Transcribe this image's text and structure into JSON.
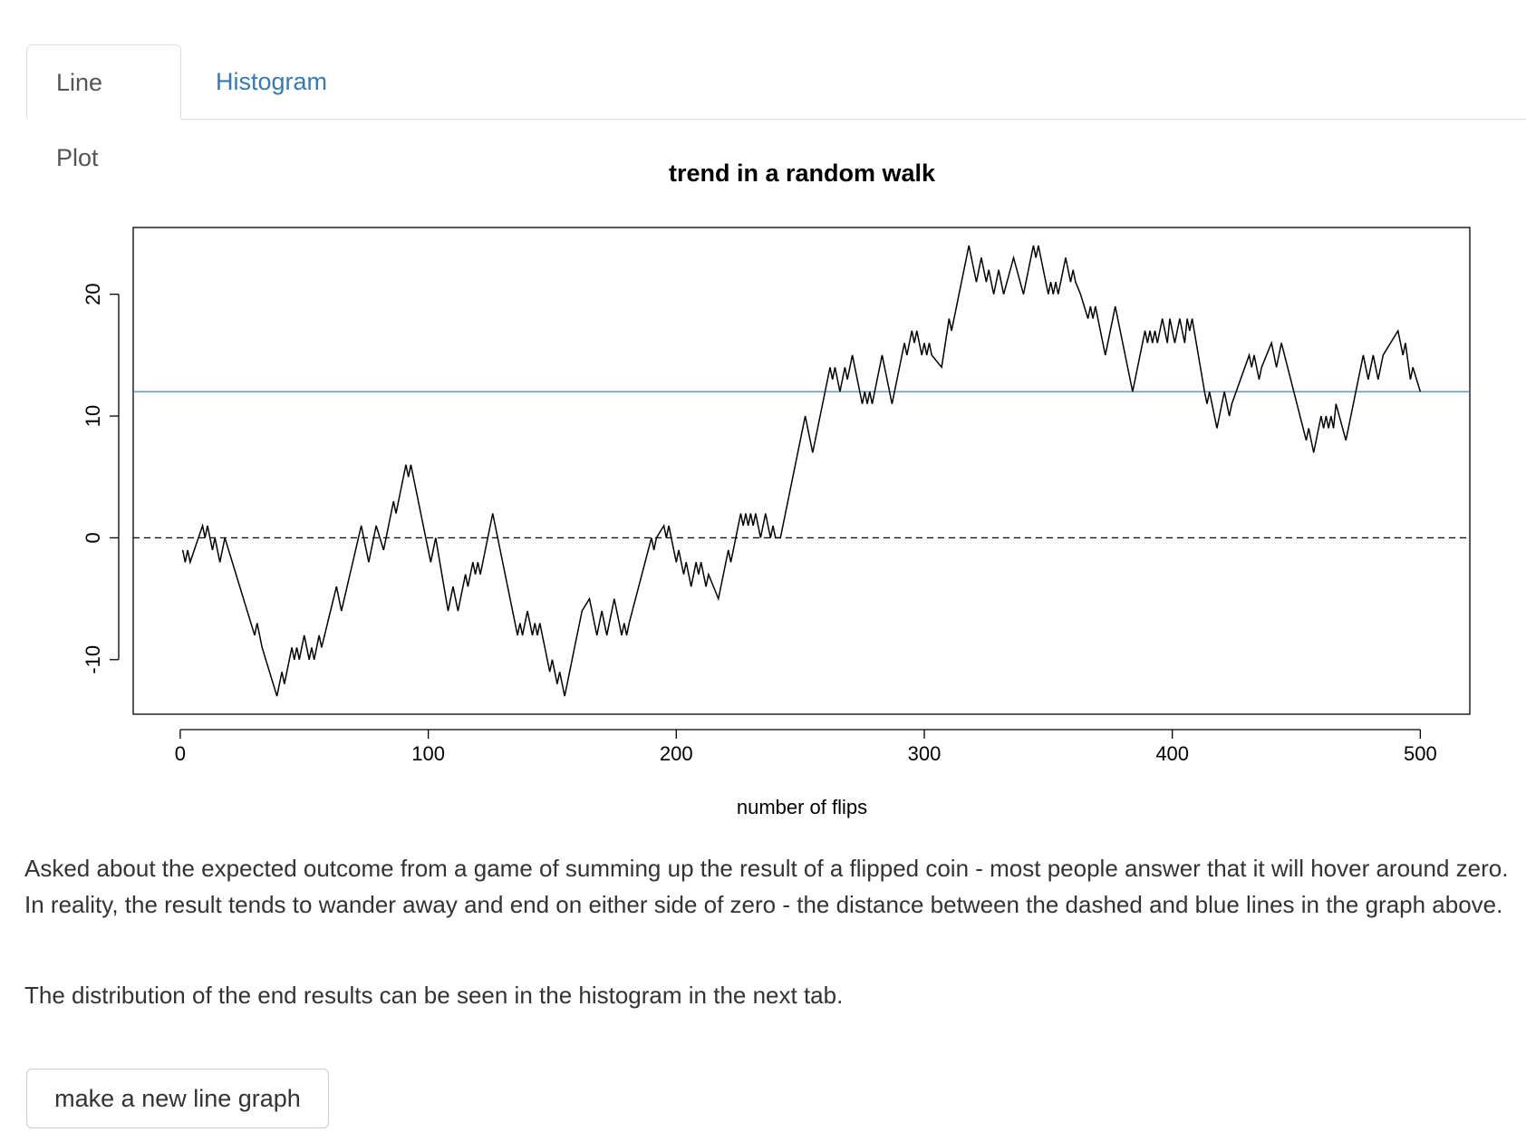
{
  "tabs": [
    "Line Plot",
    "Histogram"
  ],
  "chart_data": {
    "type": "line",
    "title": "trend in a random walk",
    "x_label": "number of flips",
    "x": [
      1,
      2,
      3,
      4,
      9,
      10,
      11,
      13,
      14,
      16,
      18,
      30,
      31,
      33,
      39,
      41,
      42,
      45,
      46,
      47,
      48,
      50,
      52,
      53,
      54,
      56,
      57,
      63,
      65,
      73,
      76,
      79,
      82,
      86,
      87,
      91,
      92,
      93,
      101,
      103,
      108,
      110,
      112,
      115,
      116,
      118,
      119,
      120,
      121,
      126,
      136,
      137,
      138,
      140,
      142,
      143,
      144,
      145,
      149,
      150,
      152,
      153,
      155,
      161,
      162,
      165,
      168,
      170,
      172,
      175,
      177,
      178,
      179,
      180,
      181,
      190,
      191,
      192,
      195,
      196,
      197,
      200,
      201,
      203,
      204,
      206,
      208,
      209,
      210,
      212,
      213,
      217,
      221,
      222,
      223,
      224,
      226,
      227,
      228,
      229,
      230,
      231,
      232,
      234,
      236,
      237,
      238,
      239,
      240,
      242,
      252,
      255,
      262,
      263,
      264,
      266,
      268,
      269,
      271,
      275,
      276,
      277,
      278,
      279,
      283,
      287,
      292,
      293,
      294,
      295,
      296,
      297,
      298,
      299,
      300,
      301,
      302,
      303,
      307,
      310,
      311,
      318,
      321,
      323,
      324,
      325,
      326,
      328,
      329,
      330,
      331,
      332,
      336,
      340,
      344,
      345,
      346,
      348,
      350,
      351,
      352,
      353,
      354,
      357,
      358,
      359,
      360,
      361,
      363,
      366,
      367,
      368,
      369,
      373,
      377,
      384,
      389,
      390,
      391,
      392,
      393,
      394,
      396,
      397,
      398,
      399,
      400,
      401,
      403,
      404,
      405,
      406,
      407,
      408,
      413,
      414,
      415,
      416,
      418,
      421,
      422,
      423,
      424,
      431,
      432,
      433,
      434,
      435,
      436,
      440,
      441,
      442,
      443,
      444,
      454,
      455,
      457,
      460,
      461,
      462,
      463,
      464,
      465,
      466,
      470,
      477,
      478,
      479,
      480,
      481,
      482,
      483,
      484,
      485,
      491,
      492,
      493,
      494,
      496,
      497,
      500
    ],
    "y": [
      -1,
      -2,
      -1,
      -2,
      1,
      0,
      1,
      -1,
      0,
      -2,
      0,
      -8,
      -7,
      -9,
      -13,
      -11,
      -12,
      -9,
      -10,
      -9,
      -10,
      -8,
      -10,
      -9,
      -10,
      -8,
      -9,
      -4,
      -6,
      1,
      -2,
      1,
      -1,
      3,
      2,
      6,
      5,
      6,
      -2,
      0,
      -6,
      -4,
      -6,
      -3,
      -4,
      -2,
      -3,
      -2,
      -3,
      2,
      -8,
      -7,
      -8,
      -6,
      -8,
      -7,
      -8,
      -7,
      -11,
      -10,
      -12,
      -11,
      -13,
      -7,
      -6,
      -5,
      -8,
      -6,
      -8,
      -5,
      -7,
      -8,
      -7,
      -8,
      -7,
      0,
      -1,
      0,
      1,
      0,
      1,
      -2,
      -1,
      -3,
      -2,
      -4,
      -2,
      -3,
      -2,
      -4,
      -3,
      -5,
      -1,
      -2,
      -1,
      0,
      2,
      1,
      2,
      1,
      2,
      1,
      2,
      0,
      2,
      1,
      0,
      1,
      0,
      0,
      10,
      7,
      14,
      13,
      14,
      12,
      14,
      13,
      15,
      11,
      12,
      11,
      12,
      11,
      15,
      11,
      16,
      15,
      16,
      17,
      16,
      17,
      16,
      15,
      16,
      15,
      16,
      15,
      14,
      18,
      17,
      24,
      21,
      23,
      22,
      21,
      22,
      20,
      21,
      22,
      21,
      20,
      23,
      20,
      24,
      23,
      24,
      22,
      20,
      21,
      20,
      21,
      20,
      23,
      22,
      21,
      22,
      21,
      20,
      18,
      19,
      18,
      19,
      15,
      19,
      12,
      17,
      16,
      17,
      16,
      17,
      16,
      18,
      17,
      16,
      18,
      17,
      16,
      18,
      17,
      16,
      18,
      17,
      18,
      12,
      11,
      12,
      11,
      9,
      12,
      11,
      10,
      11,
      15,
      14,
      15,
      14,
      13,
      14,
      16,
      15,
      14,
      15,
      16,
      8,
      9,
      7,
      10,
      9,
      10,
      9,
      10,
      9,
      11,
      8,
      15,
      14,
      13,
      14,
      15,
      14,
      13,
      14,
      15,
      17,
      16,
      15,
      16,
      13,
      14,
      12
    ],
    "color": "#000000",
    "hlines": [
      {
        "value": 0,
        "style": "dashed",
        "color": "#000000"
      },
      {
        "value": 12,
        "style": "solid",
        "color": "#4682b4"
      }
    ],
    "xlim": [
      -18.96,
      519.96
    ],
    "ylim": [
      -14.48,
      25.48
    ],
    "xticks": [
      0,
      100,
      200,
      300,
      400,
      500
    ],
    "yticks": [
      -10,
      0,
      10,
      20
    ]
  },
  "paragraphs": [
    "Asked about the expected outcome from a game of summing up the result of a flipped coin - most people answer that it will hover around zero. In reality, the result tends to wander away and end on either side of zero - the distance between the dashed and blue lines in the graph above.",
    "The distribution of the end results can be seen in the histogram in the next tab."
  ],
  "button": "make a new line graph"
}
